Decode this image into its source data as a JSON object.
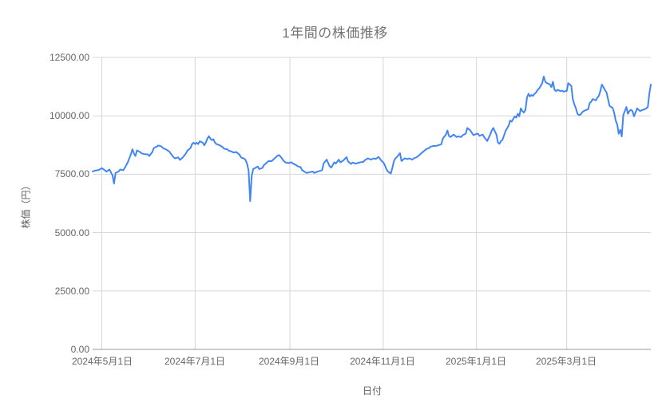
{
  "chart_data": {
    "type": "line",
    "title": "1年間の株価推移",
    "xlabel": "日付",
    "ylabel": "株価（円）",
    "x_range": [
      "2024-04-25",
      "2025-04-25"
    ],
    "ylim": [
      0,
      12500
    ],
    "grid": true,
    "legend": "none",
    "y_ticks": [
      0,
      2500,
      5000,
      7500,
      10000,
      12500
    ],
    "y_tick_labels": [
      "0.00",
      "2500.00",
      "5000.00",
      "7500.00",
      "10000.00",
      "12500.00"
    ],
    "x_tick_dates": [
      "2024-05-01",
      "2024-07-01",
      "2024-09-01",
      "2024-11-01",
      "2025-01-01",
      "2025-03-01"
    ],
    "x_tick_labels": [
      "2024年5月1日",
      "2024年7月1日",
      "2024年9月1日",
      "2024年11月1日",
      "2025年1月1日",
      "2025年3月1日"
    ],
    "colors": {
      "line": "#4285f4",
      "gridline": "#d6d6d6",
      "axis_line": "#999999",
      "tick_text": "#666666",
      "title_text": "#757575",
      "background": "#ffffff"
    },
    "series": [
      {
        "points": [
          [
            "2024-04-25",
            7620
          ],
          [
            "2024-04-27",
            7660
          ],
          [
            "2024-04-29",
            7680
          ],
          [
            "2024-05-01",
            7760
          ],
          [
            "2024-05-03",
            7670
          ],
          [
            "2024-05-04",
            7610
          ],
          [
            "2024-05-06",
            7700
          ],
          [
            "2024-05-08",
            7450
          ],
          [
            "2024-05-09",
            7100
          ],
          [
            "2024-05-10",
            7550
          ],
          [
            "2024-05-12",
            7620
          ],
          [
            "2024-05-13",
            7700
          ],
          [
            "2024-05-15",
            7670
          ],
          [
            "2024-05-16",
            7770
          ],
          [
            "2024-05-18",
            8010
          ],
          [
            "2024-05-20",
            8350
          ],
          [
            "2024-05-21",
            8570
          ],
          [
            "2024-05-22",
            8390
          ],
          [
            "2024-05-23",
            8280
          ],
          [
            "2024-05-24",
            8520
          ],
          [
            "2024-05-26",
            8450
          ],
          [
            "2024-05-27",
            8390
          ],
          [
            "2024-05-29",
            8360
          ],
          [
            "2024-05-31",
            8350
          ],
          [
            "2024-06-01",
            8280
          ],
          [
            "2024-06-03",
            8450
          ],
          [
            "2024-06-04",
            8620
          ],
          [
            "2024-06-06",
            8690
          ],
          [
            "2024-06-07",
            8730
          ],
          [
            "2024-06-09",
            8690
          ],
          [
            "2024-06-10",
            8620
          ],
          [
            "2024-06-12",
            8560
          ],
          [
            "2024-06-14",
            8480
          ],
          [
            "2024-06-15",
            8390
          ],
          [
            "2024-06-17",
            8220
          ],
          [
            "2024-06-18",
            8180
          ],
          [
            "2024-06-20",
            8220
          ],
          [
            "2024-06-21",
            8110
          ],
          [
            "2024-06-23",
            8220
          ],
          [
            "2024-06-25",
            8390
          ],
          [
            "2024-06-26",
            8510
          ],
          [
            "2024-06-28",
            8620
          ],
          [
            "2024-06-29",
            8790
          ],
          [
            "2024-06-30",
            8850
          ],
          [
            "2024-07-01",
            8790
          ],
          [
            "2024-07-02",
            8850
          ],
          [
            "2024-07-03",
            8790
          ],
          [
            "2024-07-04",
            8910
          ],
          [
            "2024-07-06",
            8850
          ],
          [
            "2024-07-07",
            8740
          ],
          [
            "2024-07-08",
            8850
          ],
          [
            "2024-07-09",
            9020
          ],
          [
            "2024-07-10",
            9130
          ],
          [
            "2024-07-11",
            9020
          ],
          [
            "2024-07-12",
            8960
          ],
          [
            "2024-07-13",
            9000
          ],
          [
            "2024-07-14",
            8850
          ],
          [
            "2024-07-15",
            8790
          ],
          [
            "2024-07-17",
            8740
          ],
          [
            "2024-07-19",
            8660
          ],
          [
            "2024-07-20",
            8590
          ],
          [
            "2024-07-22",
            8570
          ],
          [
            "2024-07-23",
            8510
          ],
          [
            "2024-07-25",
            8470
          ],
          [
            "2024-07-26",
            8430
          ],
          [
            "2024-07-28",
            8450
          ],
          [
            "2024-07-30",
            8340
          ],
          [
            "2024-07-31",
            8220
          ],
          [
            "2024-08-02",
            8170
          ],
          [
            "2024-08-03",
            8110
          ],
          [
            "2024-08-04",
            7940
          ],
          [
            "2024-08-05",
            7660
          ],
          [
            "2024-08-06",
            6350
          ],
          [
            "2024-08-07",
            7430
          ],
          [
            "2024-08-08",
            7720
          ],
          [
            "2024-08-11",
            7830
          ],
          [
            "2024-08-12",
            7720
          ],
          [
            "2024-08-14",
            7770
          ],
          [
            "2024-08-15",
            7890
          ],
          [
            "2024-08-17",
            8000
          ],
          [
            "2024-08-18",
            8060
          ],
          [
            "2024-08-20",
            8060
          ],
          [
            "2024-08-22",
            8180
          ],
          [
            "2024-08-24",
            8295
          ],
          [
            "2024-08-25",
            8320
          ],
          [
            "2024-08-26",
            8240
          ],
          [
            "2024-08-28",
            8065
          ],
          [
            "2024-08-29",
            8010
          ],
          [
            "2024-08-31",
            7975
          ],
          [
            "2024-09-02",
            8010
          ],
          [
            "2024-09-03",
            7955
          ],
          [
            "2024-09-05",
            7895
          ],
          [
            "2024-09-06",
            7840
          ],
          [
            "2024-09-08",
            7805
          ],
          [
            "2024-09-09",
            7670
          ],
          [
            "2024-09-11",
            7590
          ],
          [
            "2024-09-12",
            7555
          ],
          [
            "2024-09-14",
            7590
          ],
          [
            "2024-09-16",
            7610
          ],
          [
            "2024-09-17",
            7555
          ],
          [
            "2024-09-19",
            7610
          ],
          [
            "2024-09-20",
            7630
          ],
          [
            "2024-09-22",
            7670
          ],
          [
            "2024-09-23",
            7955
          ],
          [
            "2024-09-25",
            8125
          ],
          [
            "2024-09-27",
            7840
          ],
          [
            "2024-09-28",
            7785
          ],
          [
            "2024-09-30",
            8010
          ],
          [
            "2024-10-01",
            7955
          ],
          [
            "2024-10-03",
            8125
          ],
          [
            "2024-10-04",
            8010
          ],
          [
            "2024-10-06",
            8090
          ],
          [
            "2024-10-08",
            8230
          ],
          [
            "2024-10-09",
            8050
          ],
          [
            "2024-10-11",
            7940
          ],
          [
            "2024-10-12",
            8000
          ],
          [
            "2024-10-14",
            7950
          ],
          [
            "2024-10-15",
            7975
          ],
          [
            "2024-10-17",
            8010
          ],
          [
            "2024-10-19",
            8030
          ],
          [
            "2024-10-20",
            8100
          ],
          [
            "2024-10-22",
            8180
          ],
          [
            "2024-10-24",
            8125
          ],
          [
            "2024-10-26",
            8180
          ],
          [
            "2024-10-27",
            8150
          ],
          [
            "2024-10-29",
            8240
          ],
          [
            "2024-10-31",
            8065
          ],
          [
            "2024-11-01",
            8010
          ],
          [
            "2024-11-02",
            7895
          ],
          [
            "2024-11-03",
            7725
          ],
          [
            "2024-11-04",
            7615
          ],
          [
            "2024-11-06",
            7530
          ],
          [
            "2024-11-07",
            7780
          ],
          [
            "2024-11-08",
            8065
          ],
          [
            "2024-11-09",
            8180
          ],
          [
            "2024-11-10",
            8240
          ],
          [
            "2024-11-12",
            8400
          ],
          [
            "2024-11-13",
            8065
          ],
          [
            "2024-11-14",
            8125
          ],
          [
            "2024-11-15",
            8180
          ],
          [
            "2024-11-17",
            8150
          ],
          [
            "2024-11-18",
            8180
          ],
          [
            "2024-11-20",
            8125
          ],
          [
            "2024-11-21",
            8180
          ],
          [
            "2024-11-23",
            8230
          ],
          [
            "2024-11-25",
            8340
          ],
          [
            "2024-11-26",
            8400
          ],
          [
            "2024-11-28",
            8510
          ],
          [
            "2024-11-29",
            8570
          ],
          [
            "2024-12-01",
            8620
          ],
          [
            "2024-12-02",
            8680
          ],
          [
            "2024-12-04",
            8710
          ],
          [
            "2024-12-06",
            8720
          ],
          [
            "2024-12-07",
            8740
          ],
          [
            "2024-12-09",
            8780
          ],
          [
            "2024-12-10",
            9030
          ],
          [
            "2024-12-12",
            9200
          ],
          [
            "2024-12-13",
            9370
          ],
          [
            "2024-12-14",
            9140
          ],
          [
            "2024-12-15",
            9090
          ],
          [
            "2024-12-17",
            9200
          ],
          [
            "2024-12-19",
            9090
          ],
          [
            "2024-12-20",
            9120
          ],
          [
            "2024-12-22",
            9090
          ],
          [
            "2024-12-23",
            9170
          ],
          [
            "2024-12-25",
            9240
          ],
          [
            "2024-12-26",
            9480
          ],
          [
            "2024-12-28",
            9370
          ],
          [
            "2024-12-30",
            9170
          ],
          [
            "2024-12-31",
            9200
          ],
          [
            "2025-01-02",
            9240
          ],
          [
            "2025-01-03",
            9140
          ],
          [
            "2025-01-05",
            9200
          ],
          [
            "2025-01-06",
            9090
          ],
          [
            "2025-01-08",
            8920
          ],
          [
            "2025-01-10",
            9200
          ],
          [
            "2025-01-11",
            9370
          ],
          [
            "2025-01-12",
            9480
          ],
          [
            "2025-01-14",
            9200
          ],
          [
            "2025-01-15",
            8860
          ],
          [
            "2025-01-16",
            8800
          ],
          [
            "2025-01-17",
            8920
          ],
          [
            "2025-01-18",
            8970
          ],
          [
            "2025-01-20",
            9350
          ],
          [
            "2025-01-22",
            9580
          ],
          [
            "2025-01-23",
            9800
          ],
          [
            "2025-01-24",
            9750
          ],
          [
            "2025-01-25",
            9860
          ],
          [
            "2025-01-26",
            9975
          ],
          [
            "2025-01-27",
            9920
          ],
          [
            "2025-01-28",
            10090
          ],
          [
            "2025-01-29",
            9975
          ],
          [
            "2025-01-30",
            10320
          ],
          [
            "2025-01-31",
            10200
          ],
          [
            "2025-02-01",
            10140
          ],
          [
            "2025-02-02",
            10260
          ],
          [
            "2025-02-03",
            10775
          ],
          [
            "2025-02-04",
            10945
          ],
          [
            "2025-02-05",
            10830
          ],
          [
            "2025-02-06",
            10890
          ],
          [
            "2025-02-07",
            10855
          ],
          [
            "2025-02-08",
            10945
          ],
          [
            "2025-02-09",
            11000
          ],
          [
            "2025-02-10",
            11115
          ],
          [
            "2025-02-11",
            11170
          ],
          [
            "2025-02-12",
            11285
          ],
          [
            "2025-02-13",
            11400
          ],
          [
            "2025-02-14",
            11685
          ],
          [
            "2025-02-15",
            11460
          ],
          [
            "2025-02-16",
            11400
          ],
          [
            "2025-02-17",
            11375
          ],
          [
            "2025-02-18",
            11340
          ],
          [
            "2025-02-19",
            11230
          ],
          [
            "2025-02-20",
            11460
          ],
          [
            "2025-02-21",
            11115
          ],
          [
            "2025-02-22",
            11060
          ],
          [
            "2025-02-23",
            11115
          ],
          [
            "2025-02-25",
            11060
          ],
          [
            "2025-02-26",
            11080
          ],
          [
            "2025-02-27",
            11030
          ],
          [
            "2025-02-28",
            11060
          ],
          [
            "2025-03-01",
            11060
          ],
          [
            "2025-03-02",
            11400
          ],
          [
            "2025-03-04",
            11285
          ],
          [
            "2025-03-05",
            10720
          ],
          [
            "2025-03-06",
            10490
          ],
          [
            "2025-03-07",
            10320
          ],
          [
            "2025-03-08",
            10090
          ],
          [
            "2025-03-09",
            10030
          ],
          [
            "2025-03-10",
            10050
          ],
          [
            "2025-03-11",
            10140
          ],
          [
            "2025-03-12",
            10200
          ],
          [
            "2025-03-14",
            10260
          ],
          [
            "2025-03-15",
            10280
          ],
          [
            "2025-03-16",
            10545
          ],
          [
            "2025-03-17",
            10600
          ],
          [
            "2025-03-18",
            10720
          ],
          [
            "2025-03-20",
            10660
          ],
          [
            "2025-03-21",
            10775
          ],
          [
            "2025-03-22",
            10855
          ],
          [
            "2025-03-23",
            11060
          ],
          [
            "2025-03-24",
            11340
          ],
          [
            "2025-03-25",
            11230
          ],
          [
            "2025-03-26",
            11115
          ],
          [
            "2025-03-27",
            11000
          ],
          [
            "2025-03-28",
            10720
          ],
          [
            "2025-03-29",
            10430
          ],
          [
            "2025-03-30",
            10375
          ],
          [
            "2025-03-31",
            10350
          ],
          [
            "2025-04-01",
            10140
          ],
          [
            "2025-04-02",
            9800
          ],
          [
            "2025-04-03",
            9630
          ],
          [
            "2025-04-04",
            9230
          ],
          [
            "2025-04-05",
            9400
          ],
          [
            "2025-04-06",
            9120
          ],
          [
            "2025-04-07",
            10030
          ],
          [
            "2025-04-08",
            10200
          ],
          [
            "2025-04-09",
            10375
          ],
          [
            "2025-04-10",
            10090
          ],
          [
            "2025-04-11",
            10200
          ],
          [
            "2025-04-12",
            10260
          ],
          [
            "2025-04-13",
            10200
          ],
          [
            "2025-04-14",
            9975
          ],
          [
            "2025-04-15",
            10140
          ],
          [
            "2025-04-16",
            10320
          ],
          [
            "2025-04-17",
            10260
          ],
          [
            "2025-04-18",
            10200
          ],
          [
            "2025-04-19",
            10240
          ],
          [
            "2025-04-20",
            10260
          ],
          [
            "2025-04-21",
            10280
          ],
          [
            "2025-04-22",
            10320
          ],
          [
            "2025-04-23",
            10375
          ],
          [
            "2025-04-24",
            10945
          ],
          [
            "2025-04-25",
            11340
          ]
        ]
      }
    ]
  }
}
